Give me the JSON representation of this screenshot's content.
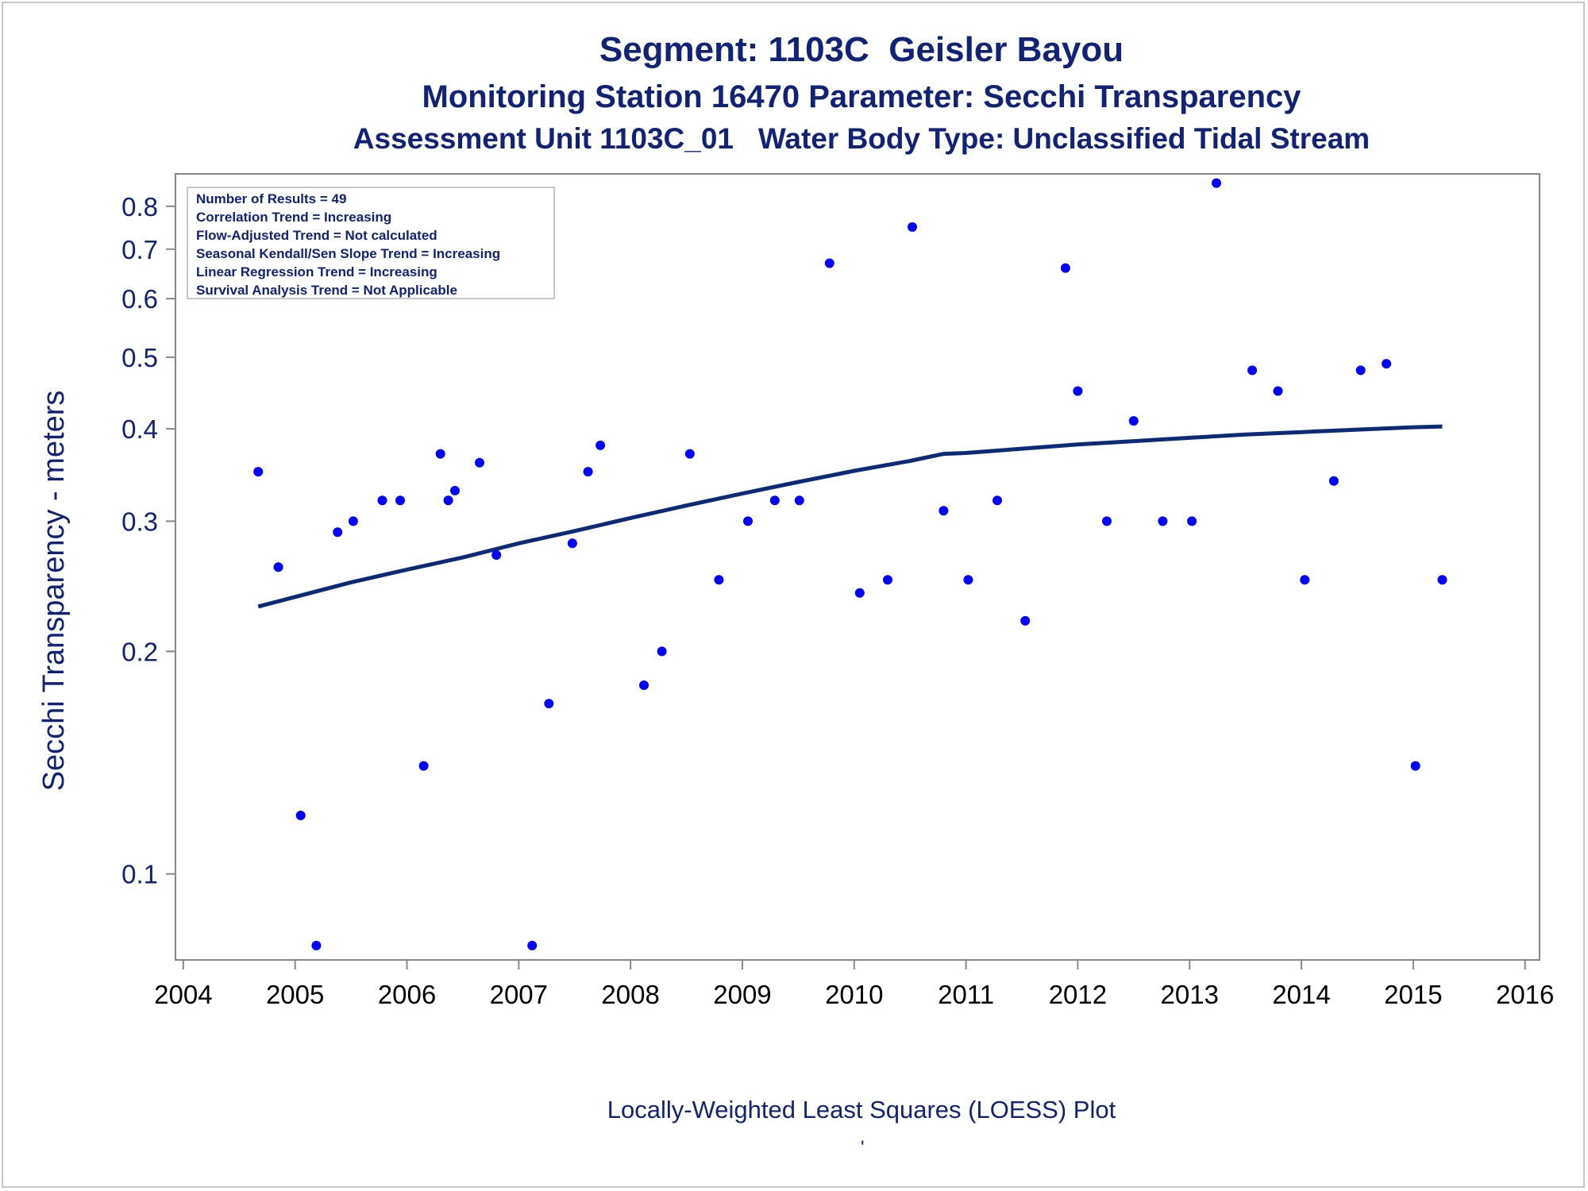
{
  "titles": {
    "line1": "Segment: 1103C  Geisler Bayou",
    "line2": "Monitoring Station 16470 Parameter: Secchi Transparency",
    "line3": "Assessment Unit 1103C_01   Water Body Type: Unclassified Tidal Stream"
  },
  "footnote": "Locally-Weighted Least Squares (LOESS) Plot",
  "footnote_mark": "'",
  "stats_box": [
    "Number of Results = 49",
    "Correlation Trend = Increasing",
    "Flow-Adjusted Trend = Not calculated",
    "Seasonal Kendall/Sen Slope Trend = Increasing",
    "Linear Regression Trend = Increasing",
    "Survival Analysis Trend = Not Applicable"
  ],
  "colors": {
    "text": "#112277",
    "points": "#0000ff",
    "loess": "#0d2a78",
    "axis": "#888888"
  },
  "chart_data": {
    "type": "scatter",
    "ylabel": "Secchi Transparency - meters",
    "xlabel": "",
    "y_scale": "log",
    "xlim": [
      2004,
      2016
    ],
    "ylim": [
      0.08,
      0.88
    ],
    "x_ticks": [
      "2004",
      "2005",
      "2006",
      "2007",
      "2008",
      "2009",
      "2010",
      "2011",
      "2012",
      "2013",
      "2014",
      "2015",
      "2016"
    ],
    "y_ticks": [
      "0.1",
      "0.2",
      "0.3",
      "0.4",
      "0.5",
      "0.6",
      "0.7",
      "0.8"
    ],
    "grid": false,
    "series": [
      {
        "kind": "points",
        "points": [
          {
            "x": 2004.67,
            "y": 0.35
          },
          {
            "x": 2004.85,
            "y": 0.26
          },
          {
            "x": 2005.05,
            "y": 0.12
          },
          {
            "x": 2005.19,
            "y": 0.08
          },
          {
            "x": 2005.38,
            "y": 0.29
          },
          {
            "x": 2005.52,
            "y": 0.3
          },
          {
            "x": 2005.78,
            "y": 0.32
          },
          {
            "x": 2005.94,
            "y": 0.32
          },
          {
            "x": 2006.15,
            "y": 0.14
          },
          {
            "x": 2006.3,
            "y": 0.37
          },
          {
            "x": 2006.37,
            "y": 0.32
          },
          {
            "x": 2006.43,
            "y": 0.33
          },
          {
            "x": 2006.65,
            "y": 0.36
          },
          {
            "x": 2006.8,
            "y": 0.27
          },
          {
            "x": 2007.12,
            "y": 0.08
          },
          {
            "x": 2007.27,
            "y": 0.17
          },
          {
            "x": 2007.48,
            "y": 0.28
          },
          {
            "x": 2007.62,
            "y": 0.35
          },
          {
            "x": 2007.73,
            "y": 0.38
          },
          {
            "x": 2008.12,
            "y": 0.18
          },
          {
            "x": 2008.28,
            "y": 0.2
          },
          {
            "x": 2008.53,
            "y": 0.37
          },
          {
            "x": 2008.79,
            "y": 0.25
          },
          {
            "x": 2009.05,
            "y": 0.3
          },
          {
            "x": 2009.29,
            "y": 0.32
          },
          {
            "x": 2009.51,
            "y": 0.32
          },
          {
            "x": 2009.78,
            "y": 0.67
          },
          {
            "x": 2010.05,
            "y": 0.24
          },
          {
            "x": 2010.3,
            "y": 0.25
          },
          {
            "x": 2010.52,
            "y": 0.75
          },
          {
            "x": 2010.8,
            "y": 0.31
          },
          {
            "x": 2011.02,
            "y": 0.25
          },
          {
            "x": 2011.28,
            "y": 0.32
          },
          {
            "x": 2011.53,
            "y": 0.22
          },
          {
            "x": 2011.89,
            "y": 0.66
          },
          {
            "x": 2012.0,
            "y": 0.45
          },
          {
            "x": 2012.26,
            "y": 0.3
          },
          {
            "x": 2012.5,
            "y": 0.41
          },
          {
            "x": 2012.76,
            "y": 0.3
          },
          {
            "x": 2013.02,
            "y": 0.3
          },
          {
            "x": 2013.24,
            "y": 0.86
          },
          {
            "x": 2013.56,
            "y": 0.48
          },
          {
            "x": 2013.79,
            "y": 0.45
          },
          {
            "x": 2014.03,
            "y": 0.25
          },
          {
            "x": 2014.29,
            "y": 0.34
          },
          {
            "x": 2014.53,
            "y": 0.48
          },
          {
            "x": 2014.76,
            "y": 0.49
          },
          {
            "x": 2015.02,
            "y": 0.14
          },
          {
            "x": 2015.26,
            "y": 0.25
          }
        ]
      },
      {
        "kind": "loess_line",
        "points": [
          {
            "x": 2004.67,
            "y": 0.23
          },
          {
            "x": 2005.0,
            "y": 0.237
          },
          {
            "x": 2005.5,
            "y": 0.248
          },
          {
            "x": 2006.0,
            "y": 0.258
          },
          {
            "x": 2006.5,
            "y": 0.268
          },
          {
            "x": 2007.0,
            "y": 0.28
          },
          {
            "x": 2007.5,
            "y": 0.291
          },
          {
            "x": 2008.0,
            "y": 0.303
          },
          {
            "x": 2008.5,
            "y": 0.315
          },
          {
            "x": 2009.0,
            "y": 0.327
          },
          {
            "x": 2009.5,
            "y": 0.339
          },
          {
            "x": 2010.0,
            "y": 0.351
          },
          {
            "x": 2010.5,
            "y": 0.362
          },
          {
            "x": 2010.8,
            "y": 0.37
          },
          {
            "x": 2011.0,
            "y": 0.371
          },
          {
            "x": 2011.5,
            "y": 0.376
          },
          {
            "x": 2012.0,
            "y": 0.381
          },
          {
            "x": 2012.5,
            "y": 0.385
          },
          {
            "x": 2013.0,
            "y": 0.389
          },
          {
            "x": 2013.5,
            "y": 0.393
          },
          {
            "x": 2014.0,
            "y": 0.396
          },
          {
            "x": 2014.5,
            "y": 0.399
          },
          {
            "x": 2015.0,
            "y": 0.402
          },
          {
            "x": 2015.26,
            "y": 0.403
          }
        ]
      }
    ]
  }
}
